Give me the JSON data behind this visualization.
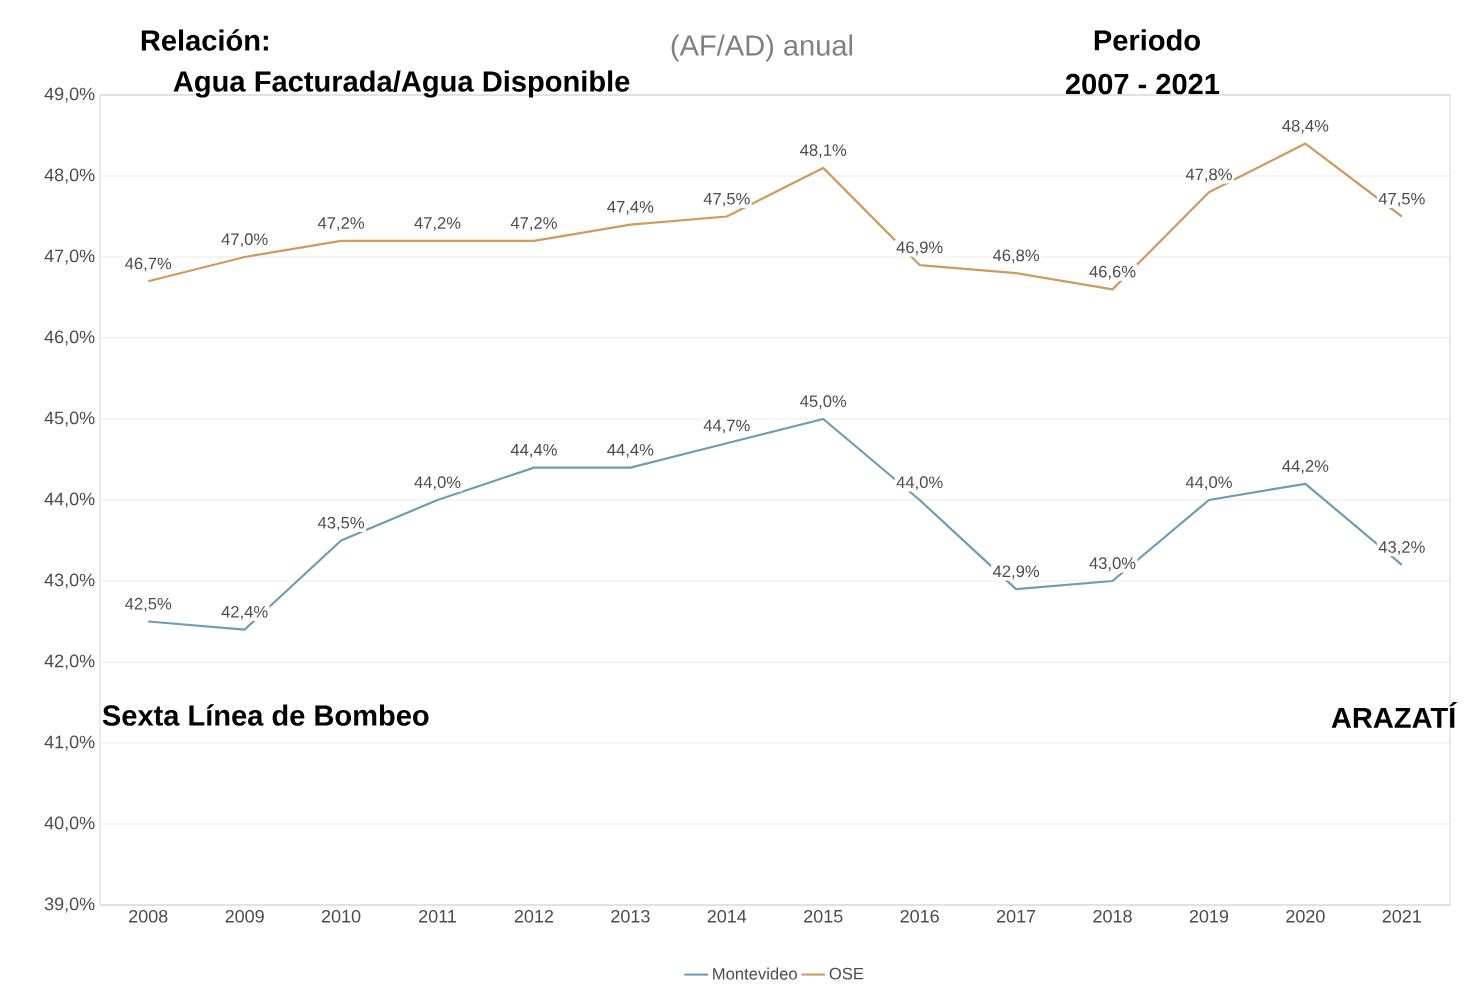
{
  "chart_data": {
    "type": "line",
    "title": "Relación:",
    "subtitle": "Agua **Facturada**/Agua **Disponible**",
    "annotations": [
      "(AF/AD) anual",
      "Periodo",
      "2007 - 2021",
      "Sexta Línea de Bombeo",
      "ARAZATÍ"
    ],
    "categories": [
      "2008",
      "2009",
      "2010",
      "2011",
      "2012",
      "2013",
      "2014",
      "2015",
      "2016",
      "2017",
      "2018",
      "2019",
      "2020",
      "2021"
    ],
    "series": [
      {
        "name": "Montevideo",
        "color": "#6f9cb5",
        "values": [
          42.5,
          42.4,
          43.5,
          44.0,
          44.4,
          44.4,
          44.7,
          45.0,
          44.0,
          42.9,
          43.0,
          44.0,
          44.2,
          43.2
        ],
        "value_labels": [
          "42,5%",
          "42,4%",
          "43,5%",
          "44,0%",
          "44,4%",
          "44,4%",
          "44,7%",
          "45,0%",
          "44,0%",
          "42,9%",
          "43,0%",
          "44,0%",
          "44,2%",
          "43,2%"
        ]
      },
      {
        "name": "OSE",
        "color": "#d09a5e",
        "values": [
          46.7,
          47.0,
          47.2,
          47.2,
          47.2,
          47.4,
          47.5,
          48.1,
          46.9,
          46.8,
          46.6,
          47.8,
          48.4,
          47.5
        ],
        "value_labels": [
          "46,7%",
          "47,0%",
          "47,2%",
          "47,2%",
          "47,2%",
          "47,4%",
          "47,5%",
          "48,1%",
          "46,9%",
          "46,8%",
          "46,6%",
          "47,8%",
          "48,4%",
          "47,5%"
        ]
      }
    ],
    "ylim": [
      39,
      49
    ],
    "yticks": [
      {
        "value": 39,
        "label": "39,0%"
      },
      {
        "value": 40,
        "label": "40,0%"
      },
      {
        "value": 41,
        "label": "41,0%"
      },
      {
        "value": 42,
        "label": "42,0%"
      },
      {
        "value": 43,
        "label": "43,0%"
      },
      {
        "value": 44,
        "label": "44,0%"
      },
      {
        "value": 45,
        "label": "45,0%"
      },
      {
        "value": 46,
        "label": "46,0%"
      },
      {
        "value": 47,
        "label": "47,0%"
      },
      {
        "value": 48,
        "label": "48,0%"
      },
      {
        "value": 49,
        "label": "49,0%"
      }
    ],
    "grid": "y",
    "legend": "bottom",
    "marker": "none",
    "line_style": "solid"
  }
}
